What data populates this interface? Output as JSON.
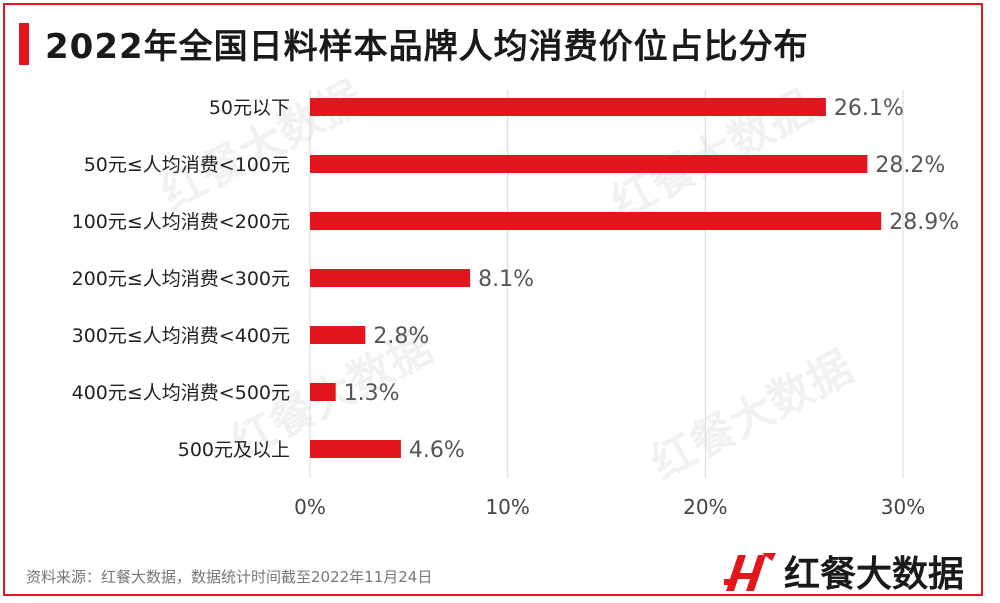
{
  "title": "2022年全国日料样本品牌人均消费价位占比分布",
  "watermark_text": "红餐大数据",
  "source": "资料来源：红餐大数据，数据统计时间截至2022年11月24日",
  "brand": {
    "name": "红餐大数据",
    "icon": "hongcan-logo-icon"
  },
  "colors": {
    "accent": "#e3161e",
    "grid": "#d9d9d9",
    "value_text": "#555555"
  },
  "chart_data": {
    "type": "bar",
    "orientation": "horizontal",
    "categories": [
      "50元以下",
      "50元≤人均消费<100元",
      "100元≤人均消费<200元",
      "200元≤人均消费<300元",
      "300元≤人均消费<400元",
      "400元≤人均消费<500元",
      "500元及以上"
    ],
    "values": [
      26.1,
      28.2,
      28.9,
      8.1,
      2.8,
      1.3,
      4.6
    ],
    "value_labels": [
      "26.1%",
      "28.2%",
      "28.9%",
      "8.1%",
      "2.8%",
      "1.3%",
      "4.6%"
    ],
    "title": "2022年全国日料样本品牌人均消费价位占比分布",
    "xlabel": "",
    "ylabel": "",
    "xlim": [
      0,
      30
    ],
    "xticks": [
      0,
      10,
      20,
      30
    ],
    "xtick_labels": [
      "0%",
      "10%",
      "20%",
      "30%"
    ],
    "grid": "vertical",
    "legend": "none"
  }
}
